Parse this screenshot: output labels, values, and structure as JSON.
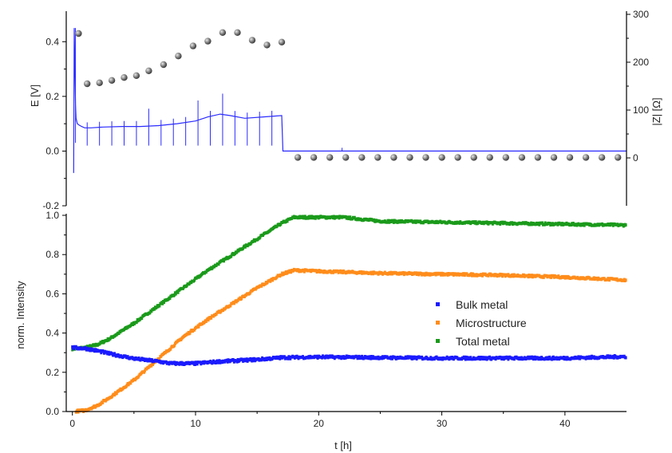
{
  "colors": {
    "axis": "#000000",
    "potential": "#2b2bff",
    "marker": "#7a7a7a",
    "marker_edge": "#3a3a3a",
    "bulk": "#1a1aff",
    "micro": "#ff8c1a",
    "total": "#1a9a1a"
  },
  "chart_data": [
    {
      "type": "line",
      "panel": "top",
      "title": "",
      "xlabel": "",
      "ylabel": "E [V]",
      "y2label": "|Z| [Ω]",
      "xlim": [
        -0.5,
        45
      ],
      "ylim": [
        -0.2,
        0.5
      ],
      "y2lim": [
        -100,
        300
      ],
      "yticks": [
        "-0.2",
        "0.0",
        "0.2",
        "0.4"
      ],
      "y2ticks": [
        "0",
        "100",
        "200",
        "300"
      ],
      "grid": false,
      "series": [
        {
          "axis": "left",
          "style": "line",
          "x": [
            0.1,
            0.15,
            0.2,
            0.25,
            0.3,
            0.4,
            0.55,
            0.75,
            1.0,
            1.5,
            2.5,
            4,
            5.5,
            7,
            8.5,
            10,
            11,
            12,
            12.8,
            14,
            15.5,
            17,
            17.1,
            20,
            25,
            30,
            35,
            40,
            45
          ],
          "y": [
            -0.08,
            0.45,
            0.3,
            0.17,
            0.12,
            0.1,
            0.095,
            0.09,
            0.085,
            0.085,
            0.088,
            0.09,
            0.09,
            0.093,
            0.1,
            0.11,
            0.125,
            0.135,
            0.13,
            0.12,
            0.125,
            0.13,
            0.0,
            0.0,
            0.0,
            0.0,
            0.0,
            0.0,
            0.0
          ]
        },
        {
          "axis": "right",
          "style": "markers",
          "x": [
            0.5,
            1.2,
            2.2,
            3.2,
            4.2,
            5.2,
            6.2,
            7.4,
            8.6,
            9.8,
            11.0,
            12.2,
            13.4,
            14.6,
            15.8,
            17.0,
            18.3,
            19.6,
            20.9,
            22.2,
            23.5,
            24.8,
            26.1,
            27.4,
            28.7,
            30.0,
            31.3,
            32.6,
            33.9,
            35.2,
            36.5,
            37.8,
            39.1,
            40.4,
            41.7,
            43.0,
            44.3
          ],
          "y": [
            260,
            155,
            157,
            162,
            168,
            172,
            182,
            195,
            213,
            234,
            244,
            262,
            262,
            246,
            236,
            242,
            1,
            1,
            1,
            1,
            1,
            1,
            1,
            1,
            1,
            1,
            1,
            1,
            1,
            1,
            1,
            1,
            1,
            1,
            1,
            1,
            1
          ]
        }
      ]
    },
    {
      "type": "scatter",
      "panel": "bottom",
      "title": "",
      "xlabel": "t [h]",
      "ylabel": "norm. Intensity",
      "xlim": [
        -0.5,
        45
      ],
      "ylim": [
        0.0,
        1.0
      ],
      "xticks": [
        "0",
        "10",
        "20",
        "30",
        "40"
      ],
      "yticks": [
        "0.0",
        "0.2",
        "0.4",
        "0.6",
        "0.8",
        "1.0"
      ],
      "grid": false,
      "legend": "center-right",
      "series": [
        {
          "name": "Bulk metal",
          "x": [
            0,
            1,
            2,
            3,
            5,
            7,
            8,
            10,
            12,
            15,
            17,
            20,
            25,
            30,
            35,
            40,
            45
          ],
          "y": [
            0.325,
            0.322,
            0.31,
            0.295,
            0.27,
            0.255,
            0.245,
            0.245,
            0.255,
            0.265,
            0.275,
            0.278,
            0.275,
            0.272,
            0.272,
            0.272,
            0.28
          ]
        },
        {
          "name": "Microstructure",
          "x": [
            0,
            1,
            2,
            3,
            5,
            7,
            9,
            11,
            13,
            15,
            17,
            18,
            20,
            25,
            30,
            35,
            40,
            45
          ],
          "y": [
            0.0,
            0.005,
            0.03,
            0.07,
            0.16,
            0.27,
            0.38,
            0.47,
            0.55,
            0.63,
            0.7,
            0.72,
            0.715,
            0.705,
            0.7,
            0.695,
            0.685,
            0.67
          ]
        },
        {
          "name": "Total metal",
          "x": [
            0,
            1,
            2,
            3,
            5,
            7,
            9,
            11,
            13,
            15,
            17,
            18,
            20,
            22,
            25,
            30,
            35,
            40,
            45
          ],
          "y": [
            0.32,
            0.325,
            0.34,
            0.37,
            0.45,
            0.54,
            0.63,
            0.72,
            0.8,
            0.88,
            0.96,
            0.99,
            0.99,
            0.99,
            0.97,
            0.965,
            0.96,
            0.955,
            0.95
          ]
        }
      ]
    }
  ]
}
